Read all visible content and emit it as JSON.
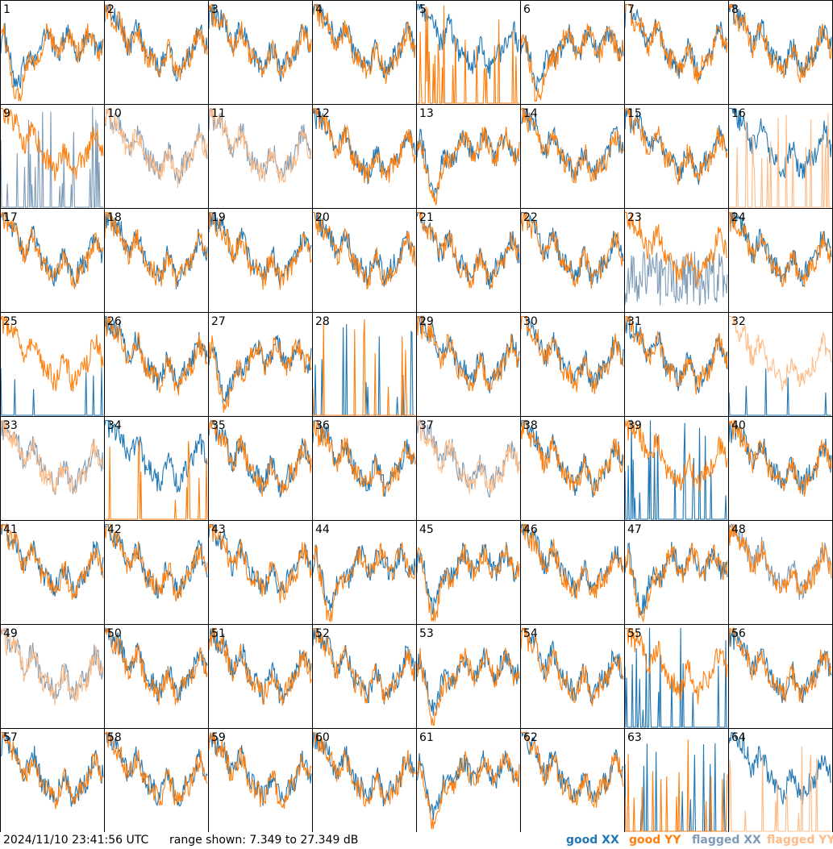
{
  "footer": {
    "timestamp": "2024/11/10 23:41:56 UTC",
    "range_text": "range shown: 7.349 to 27.349 dB"
  },
  "legend": [
    {
      "label": "good XX",
      "color": "#1f77b4"
    },
    {
      "label": "good YY",
      "color": "#ff7f0e"
    },
    {
      "label": "flagged XX",
      "color": "#7e9cb8"
    },
    {
      "label": "flagged YY",
      "color": "#ffbb86"
    }
  ],
  "chart_data": {
    "type": "line",
    "title": "",
    "ylim": [
      7.349,
      27.349
    ],
    "yunit": "dB",
    "grid_layout": "8x8 small multiples",
    "series_names": [
      "good XX",
      "good YY",
      "flagged XX",
      "flagged YY"
    ],
    "panels": [
      {
        "label": "1",
        "xx": "good",
        "yy": "good",
        "pattern": "dip"
      },
      {
        "label": "2",
        "xx": "good",
        "yy": "good",
        "pattern": "normal"
      },
      {
        "label": "3",
        "xx": "good",
        "yy": "good",
        "pattern": "normal"
      },
      {
        "label": "4",
        "xx": "good",
        "yy": "good",
        "pattern": "normal"
      },
      {
        "label": "5",
        "xx": "good",
        "yy": "good",
        "pattern": "yy_spiky"
      },
      {
        "label": "6",
        "xx": "good",
        "yy": "good",
        "pattern": "dip"
      },
      {
        "label": "7",
        "xx": "good",
        "yy": "good",
        "pattern": "normal"
      },
      {
        "label": "8",
        "xx": "good",
        "yy": "good",
        "pattern": "normal"
      },
      {
        "label": "9",
        "xx": "flagged",
        "yy": "good",
        "pattern": "xx_spiky"
      },
      {
        "label": "10",
        "xx": "flagged",
        "yy": "flagged",
        "pattern": "normal"
      },
      {
        "label": "11",
        "xx": "flagged",
        "yy": "flagged",
        "pattern": "normal"
      },
      {
        "label": "12",
        "xx": "good",
        "yy": "good",
        "pattern": "normal"
      },
      {
        "label": "13",
        "xx": "good",
        "yy": "good",
        "pattern": "dip"
      },
      {
        "label": "14",
        "xx": "good",
        "yy": "good",
        "pattern": "normal"
      },
      {
        "label": "15",
        "xx": "good",
        "yy": "good",
        "pattern": "normal"
      },
      {
        "label": "16",
        "xx": "good",
        "yy": "flagged",
        "pattern": "yy_spiky"
      },
      {
        "label": "17",
        "xx": "good",
        "yy": "good",
        "pattern": "normal"
      },
      {
        "label": "18",
        "xx": "good",
        "yy": "good",
        "pattern": "normal"
      },
      {
        "label": "19",
        "xx": "good",
        "yy": "good",
        "pattern": "normal"
      },
      {
        "label": "20",
        "xx": "good",
        "yy": "good",
        "pattern": "normal"
      },
      {
        "label": "21",
        "xx": "good",
        "yy": "good",
        "pattern": "normal"
      },
      {
        "label": "22",
        "xx": "good",
        "yy": "good",
        "pattern": "normal"
      },
      {
        "label": "23",
        "xx": "flagged",
        "yy": "good",
        "pattern": "xx_low"
      },
      {
        "label": "24",
        "xx": "good",
        "yy": "good",
        "pattern": "normal"
      },
      {
        "label": "25",
        "xx": "good",
        "yy": "good",
        "pattern": "xx_sparse"
      },
      {
        "label": "26",
        "xx": "good",
        "yy": "good",
        "pattern": "normal"
      },
      {
        "label": "27",
        "xx": "good",
        "yy": "good",
        "pattern": "dip"
      },
      {
        "label": "28",
        "xx": "good",
        "yy": "good",
        "pattern": "both_spiky"
      },
      {
        "label": "29",
        "xx": "good",
        "yy": "good",
        "pattern": "normal"
      },
      {
        "label": "30",
        "xx": "good",
        "yy": "good",
        "pattern": "normal"
      },
      {
        "label": "31",
        "xx": "good",
        "yy": "good",
        "pattern": "normal"
      },
      {
        "label": "32",
        "xx": "good",
        "yy": "flagged",
        "pattern": "xx_sparse"
      },
      {
        "label": "33",
        "xx": "flagged",
        "yy": "flagged",
        "pattern": "normal"
      },
      {
        "label": "34",
        "xx": "good",
        "yy": "good",
        "pattern": "yy_spiky"
      },
      {
        "label": "35",
        "xx": "good",
        "yy": "good",
        "pattern": "normal"
      },
      {
        "label": "36",
        "xx": "good",
        "yy": "good",
        "pattern": "normal"
      },
      {
        "label": "37",
        "xx": "flagged",
        "yy": "flagged",
        "pattern": "normal"
      },
      {
        "label": "38",
        "xx": "good",
        "yy": "good",
        "pattern": "normal"
      },
      {
        "label": "39",
        "xx": "good",
        "yy": "good",
        "pattern": "xx_spiky"
      },
      {
        "label": "40",
        "xx": "good",
        "yy": "good",
        "pattern": "normal"
      },
      {
        "label": "41",
        "xx": "good",
        "yy": "good",
        "pattern": "normal"
      },
      {
        "label": "42",
        "xx": "good",
        "yy": "good",
        "pattern": "normal"
      },
      {
        "label": "43",
        "xx": "good",
        "yy": "good",
        "pattern": "normal"
      },
      {
        "label": "44",
        "xx": "good",
        "yy": "good",
        "pattern": "dip"
      },
      {
        "label": "45",
        "xx": "good",
        "yy": "good",
        "pattern": "dip"
      },
      {
        "label": "46",
        "xx": "good",
        "yy": "good",
        "pattern": "normal"
      },
      {
        "label": "47",
        "xx": "good",
        "yy": "good",
        "pattern": "dip"
      },
      {
        "label": "48",
        "xx": "flagged",
        "yy": "good",
        "pattern": "normal"
      },
      {
        "label": "49",
        "xx": "flagged",
        "yy": "flagged",
        "pattern": "normal"
      },
      {
        "label": "50",
        "xx": "good",
        "yy": "good",
        "pattern": "normal"
      },
      {
        "label": "51",
        "xx": "good",
        "yy": "good",
        "pattern": "normal"
      },
      {
        "label": "52",
        "xx": "good",
        "yy": "good",
        "pattern": "normal"
      },
      {
        "label": "53",
        "xx": "good",
        "yy": "good",
        "pattern": "dip"
      },
      {
        "label": "54",
        "xx": "good",
        "yy": "good",
        "pattern": "normal"
      },
      {
        "label": "55",
        "xx": "good",
        "yy": "good",
        "pattern": "xx_spiky"
      },
      {
        "label": "56",
        "xx": "good",
        "yy": "good",
        "pattern": "normal"
      },
      {
        "label": "57",
        "xx": "good",
        "yy": "good",
        "pattern": "normal"
      },
      {
        "label": "58",
        "xx": "good",
        "yy": "good",
        "pattern": "normal"
      },
      {
        "label": "59",
        "xx": "good",
        "yy": "good",
        "pattern": "normal"
      },
      {
        "label": "60",
        "xx": "good",
        "yy": "good",
        "pattern": "normal"
      },
      {
        "label": "61",
        "xx": "good",
        "yy": "good",
        "pattern": "dip"
      },
      {
        "label": "62",
        "xx": "good",
        "yy": "good",
        "pattern": "normal"
      },
      {
        "label": "63",
        "xx": "good",
        "yy": "good",
        "pattern": "both_spiky"
      },
      {
        "label": "64",
        "xx": "good",
        "yy": "flagged",
        "pattern": "yy_spiky"
      }
    ]
  }
}
